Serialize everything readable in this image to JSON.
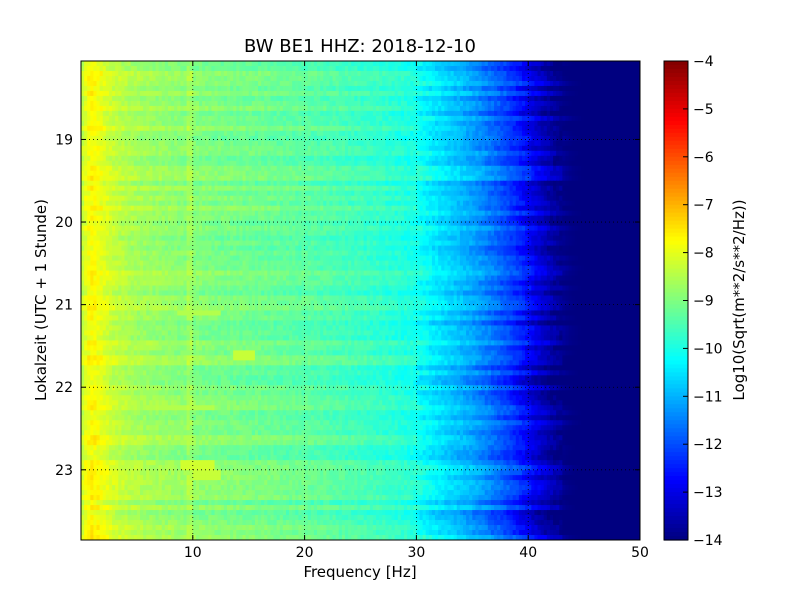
{
  "chart_data": {
    "type": "heatmap",
    "title": "BW BE1 HHZ: 2018-12-10",
    "xlabel": "Frequency [Hz]",
    "ylabel": "Lokalzeit (UTC + 1 Stunde)",
    "xlim": [
      0,
      50
    ],
    "ylim": [
      18.05,
      23.85
    ],
    "x_ticks": [
      10,
      20,
      30,
      40,
      50
    ],
    "y_ticks": [
      19,
      20,
      21,
      22,
      23
    ],
    "grid": true,
    "colormap": "jet",
    "colorbar": {
      "label": "Log10(Sqrt(m**2/s**2/Hz))",
      "min": -14,
      "max": -4,
      "ticks": [
        -4,
        -5,
        -6,
        -7,
        -8,
        -9,
        -10,
        -11,
        -12,
        -13,
        -14
      ]
    },
    "spectral_profile": {
      "frequency_hz": [
        0,
        0.5,
        1,
        2,
        3,
        5,
        8,
        10,
        12,
        15,
        20,
        25,
        28,
        30,
        31,
        33,
        35,
        37,
        39,
        40,
        41,
        42,
        43,
        44,
        50
      ],
      "log10_amplitude": [
        -8.4,
        -7.9,
        -7.7,
        -8.0,
        -8.3,
        -8.6,
        -8.8,
        -8.9,
        -9.0,
        -9.1,
        -9.3,
        -9.6,
        -9.8,
        -10.0,
        -10.3,
        -10.7,
        -11.1,
        -11.7,
        -12.3,
        -12.8,
        -13.2,
        -13.6,
        -13.9,
        -14.0,
        -14.0
      ]
    },
    "hotspots": [
      {
        "time": 20.35,
        "freq_range": [
          1.5,
          3.5
        ],
        "log10_amplitude": -8.3
      },
      {
        "time": 21.1,
        "freq_range": [
          8.5,
          12.5
        ],
        "log10_amplitude": -8.5
      },
      {
        "time": 21.6,
        "freq_range": [
          13.5,
          15.5
        ],
        "log10_amplitude": -8.3
      },
      {
        "time": 22.25,
        "freq_range": [
          6.0,
          12.0
        ],
        "log10_amplitude": -8.5
      },
      {
        "time": 22.95,
        "freq_range": [
          9.0,
          12.0
        ],
        "log10_amplitude": -8.2
      },
      {
        "time": 23.05,
        "freq_range": [
          10.0,
          12.5
        ],
        "log10_amplitude": -8.3
      }
    ]
  }
}
